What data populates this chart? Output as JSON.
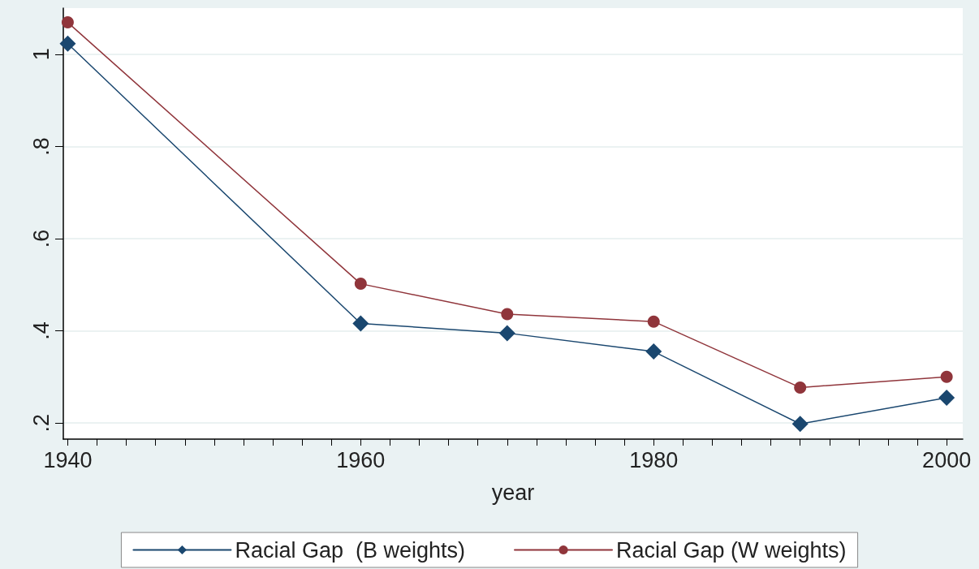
{
  "chart_data": {
    "type": "line",
    "xlabel": "year",
    "x": [
      1940,
      1960,
      1970,
      1980,
      1990,
      2000
    ],
    "series": [
      {
        "name": "Racial Gap  (B weights)",
        "color": "#1a476f",
        "marker": "diamond",
        "values": [
          1.023,
          0.416,
          0.395,
          0.355,
          0.198,
          0.255
        ]
      },
      {
        "name": "Racial Gap (W weights)",
        "color": "#90353b",
        "marker": "circle",
        "values": [
          1.069,
          0.502,
          0.436,
          0.42,
          0.277,
          0.3
        ]
      }
    ],
    "xlim": [
      1939.7,
      2001.1
    ],
    "xticks": [
      1940,
      {
        "value": 1942,
        "label": null
      },
      {
        "value": 1944,
        "label": null
      },
      {
        "value": 1946,
        "label": null
      },
      {
        "value": 1948,
        "label": null
      },
      {
        "value": 1950,
        "label": null
      },
      {
        "value": 1952,
        "label": null
      },
      {
        "value": 1954,
        "label": null
      },
      {
        "value": 1956,
        "label": null
      },
      {
        "value": 1958,
        "label": null
      },
      1960,
      {
        "value": 1962,
        "label": null
      },
      {
        "value": 1964,
        "label": null
      },
      {
        "value": 1966,
        "label": null
      },
      {
        "value": 1968,
        "label": null
      },
      {
        "value": 1970,
        "label": null
      },
      {
        "value": 1972,
        "label": null
      },
      {
        "value": 1974,
        "label": null
      },
      {
        "value": 1976,
        "label": null
      },
      {
        "value": 1978,
        "label": null
      },
      1980,
      {
        "value": 1982,
        "label": null
      },
      {
        "value": 1984,
        "label": null
      },
      {
        "value": 1986,
        "label": null
      },
      {
        "value": 1988,
        "label": null
      },
      {
        "value": 1990,
        "label": null
      },
      {
        "value": 1992,
        "label": null
      },
      {
        "value": 1994,
        "label": null
      },
      {
        "value": 1996,
        "label": null
      },
      {
        "value": 1998,
        "label": null
      },
      2000
    ],
    "ylim": [
      0.165,
      1.1
    ],
    "yticks": [
      {
        "value": 0.2,
        "label": ".2"
      },
      {
        "value": 0.4,
        "label": ".4"
      },
      {
        "value": 0.6,
        "label": ".6"
      },
      {
        "value": 0.8,
        "label": ".8"
      },
      1
    ],
    "grid": "y",
    "legend": "bottom",
    "line_style": "solid"
  }
}
